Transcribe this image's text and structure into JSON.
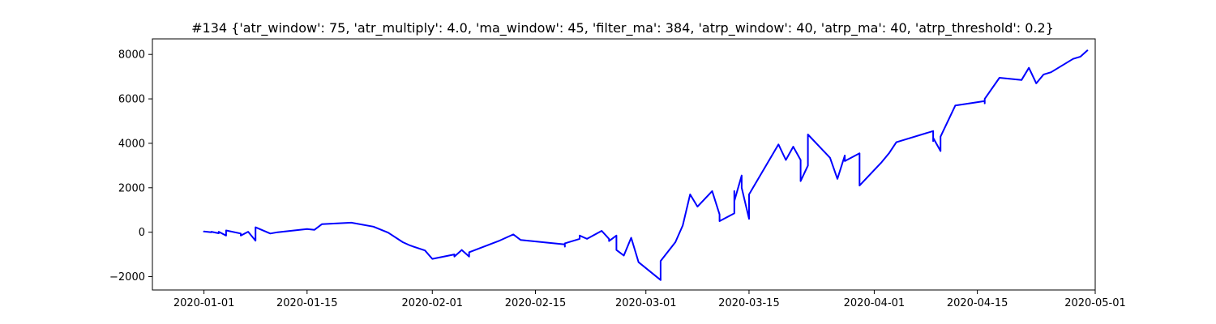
{
  "chart_data": {
    "type": "line",
    "title": "#134 {'atr_window': 75, 'atr_multiply': 4.0, 'ma_window': 45, 'filter_ma': 384, 'atrp_window': 40, 'atrp_ma': 40, 'atrp_threshold': 0.2}",
    "xlabel": "",
    "ylabel": "",
    "xlim": [
      "2019-12-25",
      "2020-05-01"
    ],
    "ylim": [
      -2600,
      8700
    ],
    "grid": false,
    "legend": "none",
    "x_ticks": [
      "2020-01-01",
      "2020-01-15",
      "2020-02-01",
      "2020-02-15",
      "2020-03-01",
      "2020-03-15",
      "2020-04-01",
      "2020-04-15",
      "2020-05-01"
    ],
    "y_ticks": [
      -2000,
      0,
      2000,
      4000,
      6000,
      8000
    ],
    "y_tick_labels": [
      "−2000",
      "0",
      "2000",
      "4000",
      "6000",
      "8000"
    ],
    "series": [
      {
        "color": "#0000ff",
        "points": [
          [
            "2020-01-01",
            0
          ],
          [
            "2020-01-01",
            30
          ],
          [
            "2020-01-02",
            0
          ],
          [
            "2020-01-02",
            20
          ],
          [
            "2020-01-03",
            -50
          ],
          [
            "2020-01-03",
            20
          ],
          [
            "2020-01-04",
            -150
          ],
          [
            "2020-01-04",
            80
          ],
          [
            "2020-01-06",
            -60
          ],
          [
            "2020-01-06",
            -150
          ],
          [
            "2020-01-07",
            20
          ],
          [
            "2020-01-08",
            -380
          ],
          [
            "2020-01-08",
            220
          ],
          [
            "2020-01-10",
            -60
          ],
          [
            "2020-01-11",
            0
          ],
          [
            "2020-01-15",
            140
          ],
          [
            "2020-01-16",
            110
          ],
          [
            "2020-01-17",
            360
          ],
          [
            "2020-01-21",
            430
          ],
          [
            "2020-01-24",
            250
          ],
          [
            "2020-01-26",
            -20
          ],
          [
            "2020-01-28",
            -450
          ],
          [
            "2020-01-29",
            -600
          ],
          [
            "2020-01-31",
            -820
          ],
          [
            "2020-02-01",
            -1200
          ],
          [
            "2020-02-04",
            -1000
          ],
          [
            "2020-02-04",
            -1100
          ],
          [
            "2020-02-05",
            -800
          ],
          [
            "2020-02-06",
            -1100
          ],
          [
            "2020-02-06",
            -900
          ],
          [
            "2020-02-10",
            -400
          ],
          [
            "2020-02-12",
            -100
          ],
          [
            "2020-02-13",
            -350
          ],
          [
            "2020-02-19",
            -550
          ],
          [
            "2020-02-19",
            -650
          ],
          [
            "2020-02-19",
            -500
          ],
          [
            "2020-02-21",
            -300
          ],
          [
            "2020-02-21",
            -150
          ],
          [
            "2020-02-22",
            -300
          ],
          [
            "2020-02-24",
            60
          ],
          [
            "2020-02-25",
            -300
          ],
          [
            "2020-02-25",
            -400
          ],
          [
            "2020-02-26",
            -150
          ],
          [
            "2020-02-26",
            -800
          ],
          [
            "2020-02-27",
            -1050
          ],
          [
            "2020-02-28",
            -250
          ],
          [
            "2020-02-29",
            -1350
          ],
          [
            "2020-03-03",
            -2150
          ],
          [
            "2020-03-03",
            -1300
          ],
          [
            "2020-03-05",
            -450
          ],
          [
            "2020-03-06",
            300
          ],
          [
            "2020-03-07",
            1700
          ],
          [
            "2020-03-08",
            1150
          ],
          [
            "2020-03-10",
            1850
          ],
          [
            "2020-03-11",
            800
          ],
          [
            "2020-03-11",
            500
          ],
          [
            "2020-03-13",
            850
          ],
          [
            "2020-03-13",
            1850
          ],
          [
            "2020-03-13",
            1400
          ],
          [
            "2020-03-14",
            2550
          ],
          [
            "2020-03-14",
            2000
          ],
          [
            "2020-03-15",
            600
          ],
          [
            "2020-03-15",
            1700
          ],
          [
            "2020-03-19",
            3950
          ],
          [
            "2020-03-20",
            3250
          ],
          [
            "2020-03-21",
            3850
          ],
          [
            "2020-03-22",
            3250
          ],
          [
            "2020-03-22",
            2300
          ],
          [
            "2020-03-23",
            3000
          ],
          [
            "2020-03-23",
            4400
          ],
          [
            "2020-03-26",
            3350
          ],
          [
            "2020-03-27",
            2400
          ],
          [
            "2020-03-28",
            3450
          ],
          [
            "2020-03-28",
            3200
          ],
          [
            "2020-03-30",
            3550
          ],
          [
            "2020-03-30",
            2100
          ],
          [
            "2020-04-02",
            3150
          ],
          [
            "2020-04-03",
            3550
          ],
          [
            "2020-04-04",
            4050
          ],
          [
            "2020-04-09",
            4550
          ],
          [
            "2020-04-09",
            4100
          ],
          [
            "2020-04-09",
            4250
          ],
          [
            "2020-04-10",
            3650
          ],
          [
            "2020-04-10",
            4300
          ],
          [
            "2020-04-12",
            5700
          ],
          [
            "2020-04-16",
            5900
          ],
          [
            "2020-04-16",
            5800
          ],
          [
            "2020-04-16",
            6000
          ],
          [
            "2020-04-18",
            6950
          ],
          [
            "2020-04-21",
            6850
          ],
          [
            "2020-04-22",
            7400
          ],
          [
            "2020-04-23",
            6700
          ],
          [
            "2020-04-24",
            7100
          ],
          [
            "2020-04-25",
            7200
          ],
          [
            "2020-04-28",
            7800
          ],
          [
            "2020-04-29",
            7900
          ],
          [
            "2020-04-30",
            8200
          ]
        ]
      }
    ]
  }
}
